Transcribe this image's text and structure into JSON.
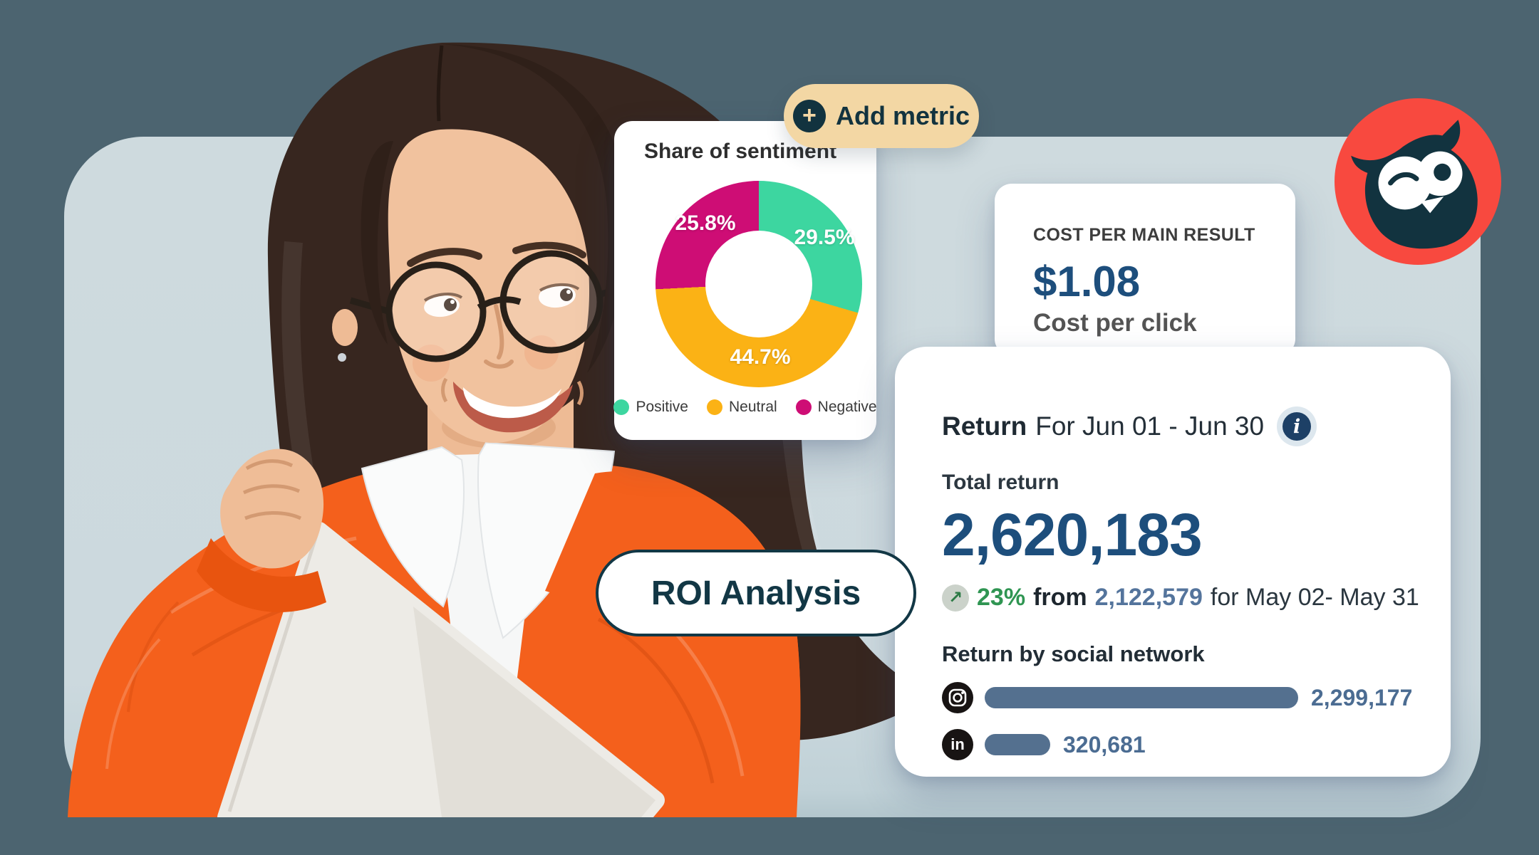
{
  "canvas": {
    "outer_bg": "#4c6470",
    "stage_bg": "#ccd9de"
  },
  "logo": {
    "name": "Hootsuite owl logo",
    "bg_color": "#f8493f",
    "owl_color": "#12333f"
  },
  "add_metric_button": {
    "label": "Add metric",
    "plus": "+",
    "bg": "#f3d7a4",
    "fg": "#12333f"
  },
  "roi_button": {
    "label": "ROI Analysis"
  },
  "sentiment_card": {
    "title": "Share of sentiment",
    "slice_labels": [
      "29.5%",
      "44.7%",
      "25.8%"
    ],
    "legend": [
      {
        "label": "Positive",
        "color": "#3dd6a0"
      },
      {
        "label": "Neutral",
        "color": "#fbb215"
      },
      {
        "label": "Negative",
        "color": "#ce0d75"
      }
    ]
  },
  "cost_card": {
    "kicker": "COST PER MAIN RESULT",
    "value": "$1.08",
    "caption": "Cost per click"
  },
  "return_card": {
    "title_bold": "Return",
    "title_range": "For Jun 01 - Jun 30",
    "info_glyph": "i",
    "total_label": "Total return",
    "total_value": "2,620,183",
    "delta": {
      "arrow": "↗",
      "pct": "23%",
      "word": "from",
      "previous": "2,122,579",
      "range": "for May 02- May 31"
    },
    "by_network_label": "Return by social network",
    "networks": [
      {
        "name": "Instagram",
        "value_display": "2,299,177",
        "value": 2299177
      },
      {
        "name": "LinkedIn",
        "value_display": "320,681",
        "value": 320681
      }
    ]
  },
  "chart_data": [
    {
      "type": "pie",
      "donut": true,
      "title": "Share of sentiment",
      "labels": [
        "Positive",
        "Neutral",
        "Negative"
      ],
      "values": [
        29.5,
        44.7,
        25.8
      ],
      "unit": "percent",
      "colors": [
        "#3dd6a0",
        "#fbb215",
        "#ce0d75"
      ],
      "start_angle": "top",
      "direction": "clockwise",
      "legend_position": "bottom"
    },
    {
      "type": "bar",
      "orientation": "horizontal",
      "title": "Return by social network",
      "categories": [
        "Instagram",
        "LinkedIn"
      ],
      "values": [
        2299177,
        320681
      ],
      "value_labels": [
        "2,299,177",
        "320,681"
      ],
      "bar_color": "#54708f"
    }
  ]
}
